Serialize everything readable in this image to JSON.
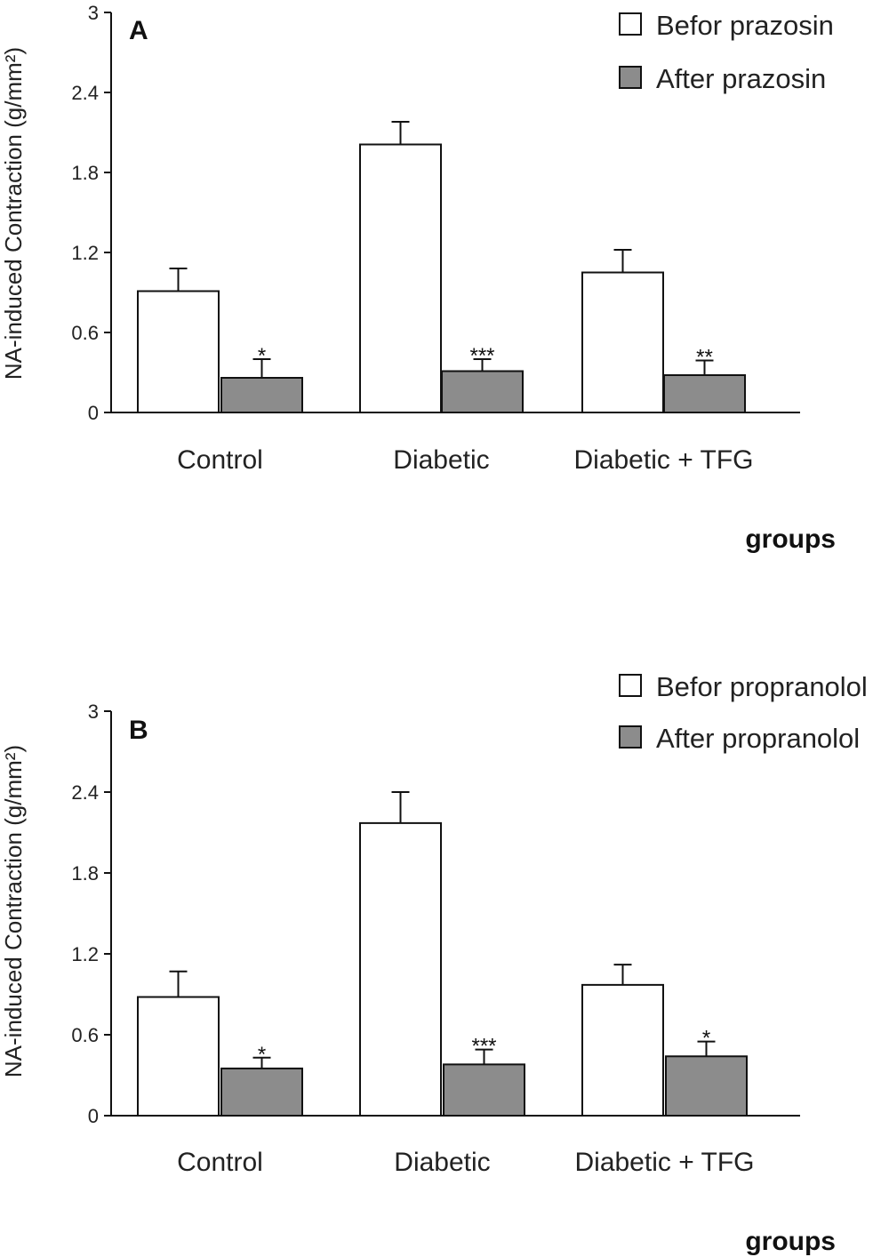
{
  "chart_data": [
    {
      "type": "bar",
      "panel": "A",
      "categories": [
        "Control",
        "Diabetic",
        "Diabetic + TFG"
      ],
      "series": [
        {
          "name": "Befor prazosin",
          "values": [
            0.91,
            2.01,
            1.05
          ],
          "errors": [
            0.17,
            0.17,
            0.17
          ],
          "color": "#ffffff"
        },
        {
          "name": "After prazosin",
          "values": [
            0.26,
            0.31,
            0.28
          ],
          "errors": [
            0.14,
            0.09,
            0.11
          ],
          "color": "#8c8c8c"
        }
      ],
      "significance": [
        "*",
        "***",
        "**"
      ],
      "xlabel": "groups",
      "ylabel": "NA-induced Contraction (g/mm²)",
      "ylim": [
        0,
        3
      ],
      "yticks": [
        "0",
        "0.6",
        "1.2",
        "1.8",
        "2.4",
        "3"
      ],
      "legend_position": "top-right",
      "grid": false
    },
    {
      "type": "bar",
      "panel": "B",
      "categories": [
        "Control",
        "Diabetic",
        "Diabetic + TFG"
      ],
      "series": [
        {
          "name": "Befor propranolol",
          "values": [
            0.88,
            2.17,
            0.97
          ],
          "errors": [
            0.19,
            0.23,
            0.15
          ],
          "color": "#ffffff"
        },
        {
          "name": "After propranolol",
          "values": [
            0.35,
            0.38,
            0.44
          ],
          "errors": [
            0.08,
            0.11,
            0.11
          ],
          "color": "#8c8c8c"
        }
      ],
      "significance": [
        "*",
        "***",
        "*"
      ],
      "xlabel": "groups",
      "ylabel": "NA-induced Contraction (g/mm²)",
      "ylim": [
        0,
        3
      ],
      "yticks": [
        "0",
        "0.6",
        "1.2",
        "1.8",
        "2.4",
        "3"
      ],
      "legend_position": "top-right",
      "grid": false
    }
  ]
}
